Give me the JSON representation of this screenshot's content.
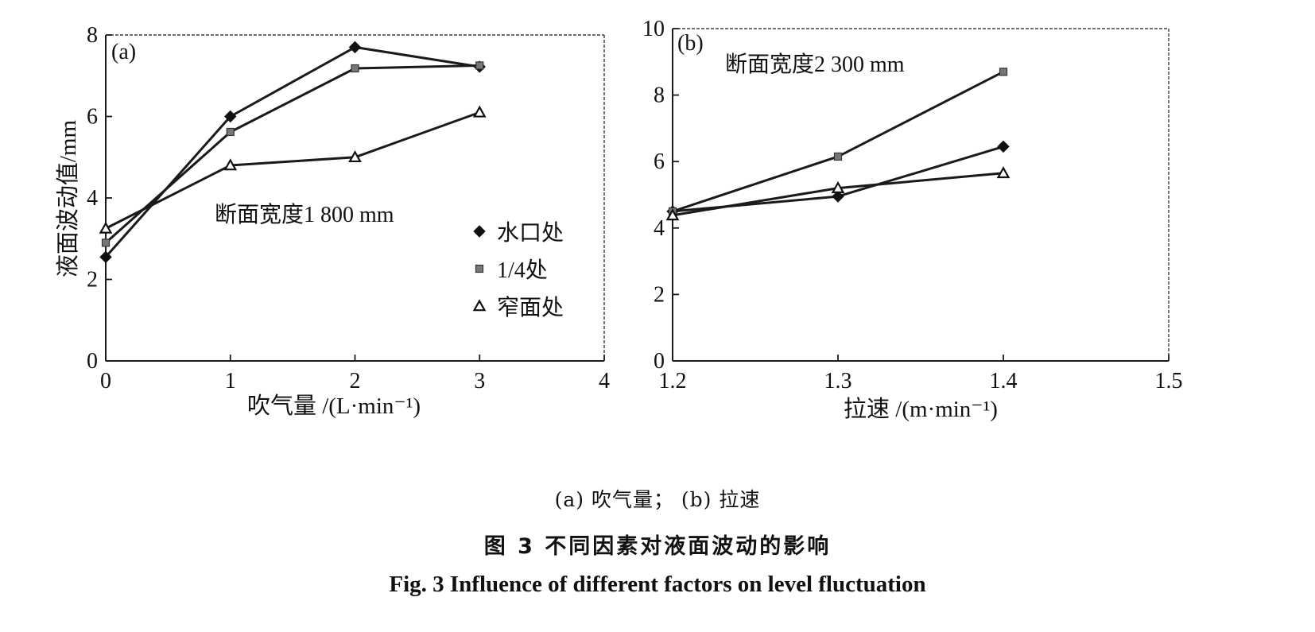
{
  "chart_data": [
    {
      "type": "line",
      "panel_label": "(a)",
      "annotation": "断面宽度1 800 mm",
      "xlabel": "吹气量 /(L·min⁻¹)",
      "ylabel": "液面波动值/mm",
      "xlim": [
        0,
        4
      ],
      "ylim": [
        0,
        8
      ],
      "xticks": [
        0,
        1,
        2,
        3,
        4
      ],
      "yticks": [
        0,
        2,
        4,
        6,
        8
      ],
      "x": [
        0,
        1,
        2,
        3
      ],
      "series": [
        {
          "name": "水口处",
          "marker": "diamond",
          "values": [
            2.55,
            6.0,
            7.7,
            7.22
          ]
        },
        {
          "name": "1/4处",
          "marker": "square",
          "values": [
            2.9,
            5.62,
            7.18,
            7.25
          ]
        },
        {
          "name": "窄面处",
          "marker": "triangle",
          "values": [
            3.25,
            4.8,
            5.0,
            6.1
          ]
        }
      ],
      "legend": {
        "position": "center-right"
      },
      "grid": false
    },
    {
      "type": "line",
      "panel_label": "(b)",
      "annotation": "断面宽度2 300 mm",
      "xlabel": "拉速 /(m·min⁻¹)",
      "ylabel": "",
      "xlim": [
        1.2,
        1.5
      ],
      "ylim": [
        0,
        10
      ],
      "xticks": [
        1.2,
        1.3,
        1.4,
        1.5
      ],
      "yticks": [
        0,
        2,
        4,
        6,
        8,
        10
      ],
      "x": [
        1.2,
        1.3,
        1.4
      ],
      "series": [
        {
          "name": "水口处",
          "marker": "diamond",
          "values": [
            4.5,
            4.95,
            6.45
          ]
        },
        {
          "name": "1/4处",
          "marker": "square",
          "values": [
            4.5,
            6.15,
            8.7
          ]
        },
        {
          "name": "窄面处",
          "marker": "triangle",
          "values": [
            4.38,
            5.2,
            5.65
          ]
        }
      ],
      "grid": false
    }
  ],
  "captions": {
    "sub": "(a) 吹气量；  (b) 拉速",
    "title_cn": "图 3   不同因素对液面波动的影响",
    "title_en": "Fig. 3    Influence of different factors on level fluctuation"
  }
}
